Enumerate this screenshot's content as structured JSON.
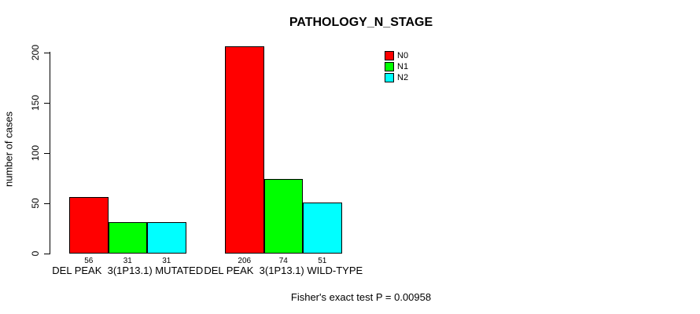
{
  "chart_data": {
    "type": "bar",
    "title": "PATHOLOGY_N_STAGE",
    "xlabel": "",
    "ylabel": "number of cases",
    "ylim": [
      0,
      200
    ],
    "yticks": [
      0,
      50,
      100,
      150,
      200
    ],
    "grid": false,
    "categories": [
      "DEL PEAK  3(1P13.1) MUTATED",
      "DEL PEAK  3(1P13.1) WILD-TYPE"
    ],
    "series": [
      {
        "name": "N0",
        "color": "#ff0000",
        "values": [
          56,
          206
        ]
      },
      {
        "name": "N1",
        "color": "#00ff00",
        "values": [
          31,
          74
        ]
      },
      {
        "name": "N2",
        "color": "#00ffff",
        "values": [
          31,
          51
        ]
      }
    ],
    "bar_value_labels_shown": true,
    "legend": {
      "position": "top-right",
      "entries": [
        "N0",
        "N1",
        "N2"
      ]
    },
    "annotation": "Fisher's exact test P = 0.00958"
  },
  "colors": {
    "background": "#ffffff",
    "axis": "#000000",
    "text": "#000000"
  }
}
